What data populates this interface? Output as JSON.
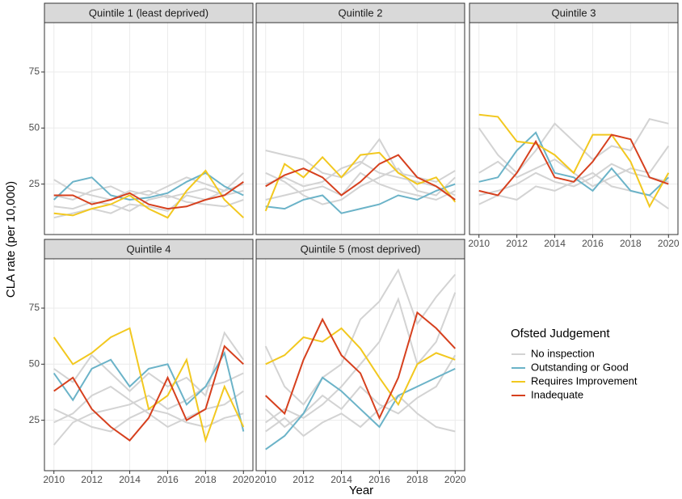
{
  "chart_data": [
    {
      "type": "line",
      "title": "Quintile 1 (least deprived)",
      "x": [
        2010,
        2011,
        2012,
        2013,
        2014,
        2015,
        2016,
        2017,
        2018,
        2019,
        2020
      ],
      "xlim": [
        2009.5,
        2020.5
      ],
      "ylim": [
        2.5,
        97
      ],
      "xticks": [
        2010,
        2012,
        2014,
        2016,
        2018,
        2020
      ],
      "yticks": [
        25,
        50,
        75
      ],
      "grid": true,
      "series": [
        {
          "color": "#d3d3d3",
          "values": [
            27,
            22,
            20,
            18,
            22,
            20,
            24,
            28,
            25,
            22,
            30
          ]
        },
        {
          "color": "#d3d3d3",
          "values": [
            15,
            14,
            17,
            16,
            13,
            18,
            20,
            17,
            16,
            15,
            18
          ]
        },
        {
          "color": "#d3d3d3",
          "values": [
            20,
            18,
            22,
            24,
            20,
            22,
            19,
            21,
            23,
            20,
            22
          ]
        },
        {
          "color": "#d3d3d3",
          "values": [
            10,
            12,
            14,
            12,
            16,
            15,
            13,
            20,
            18,
            22,
            25
          ]
        },
        {
          "color": "#6bb3c8",
          "values": [
            18,
            26,
            28,
            20,
            18,
            19,
            21,
            26,
            30,
            24,
            20
          ]
        },
        {
          "color": "#f2c81f",
          "values": [
            12,
            11,
            14,
            16,
            20,
            14,
            10,
            22,
            31,
            18,
            10
          ]
        },
        {
          "color": "#d6401e",
          "values": [
            20,
            20,
            16,
            18,
            21,
            16,
            14,
            15,
            18,
            20,
            26
          ]
        }
      ]
    },
    {
      "type": "line",
      "title": "Quintile 2",
      "x": [
        2010,
        2011,
        2012,
        2013,
        2014,
        2015,
        2016,
        2017,
        2018,
        2019,
        2020
      ],
      "xlim": [
        2009.5,
        2020.5
      ],
      "ylim": [
        2.5,
        97
      ],
      "xticks": [
        2010,
        2012,
        2014,
        2016,
        2018,
        2020
      ],
      "yticks": [
        25,
        50,
        75
      ],
      "grid": true,
      "series": [
        {
          "color": "#d3d3d3",
          "values": [
            40,
            38,
            36,
            30,
            28,
            34,
            45,
            30,
            28,
            26,
            31
          ]
        },
        {
          "color": "#d3d3d3",
          "values": [
            18,
            20,
            22,
            24,
            20,
            30,
            25,
            22,
            20,
            18,
            22
          ]
        },
        {
          "color": "#d3d3d3",
          "values": [
            25,
            28,
            24,
            26,
            32,
            35,
            30,
            28,
            26,
            24,
            20
          ]
        },
        {
          "color": "#d3d3d3",
          "values": [
            30,
            26,
            20,
            16,
            18,
            24,
            28,
            32,
            22,
            20,
            28
          ]
        },
        {
          "color": "#6bb3c8",
          "values": [
            15,
            14,
            18,
            20,
            12,
            14,
            16,
            20,
            18,
            22,
            25
          ]
        },
        {
          "color": "#f2c81f",
          "values": [
            13,
            34,
            28,
            37,
            28,
            38,
            39,
            30,
            25,
            28,
            17
          ]
        },
        {
          "color": "#d6401e",
          "values": [
            24,
            29,
            32,
            28,
            20,
            26,
            34,
            38,
            28,
            24,
            18
          ]
        }
      ]
    },
    {
      "type": "line",
      "title": "Quintile 3",
      "x": [
        2010,
        2011,
        2012,
        2013,
        2014,
        2015,
        2016,
        2017,
        2018,
        2019,
        2020
      ],
      "xlim": [
        2009.5,
        2020.5
      ],
      "ylim": [
        2.5,
        97
      ],
      "xticks": [
        2010,
        2012,
        2014,
        2016,
        2018,
        2020
      ],
      "yticks": [
        25,
        50,
        75
      ],
      "grid": true,
      "series": [
        {
          "color": "#d3d3d3",
          "values": [
            50,
            38,
            30,
            40,
            52,
            44,
            36,
            42,
            40,
            54,
            52
          ]
        },
        {
          "color": "#d3d3d3",
          "values": [
            20,
            22,
            25,
            30,
            26,
            24,
            28,
            34,
            30,
            28,
            26
          ]
        },
        {
          "color": "#d3d3d3",
          "values": [
            30,
            35,
            28,
            32,
            36,
            30,
            24,
            28,
            32,
            30,
            42
          ]
        },
        {
          "color": "#d3d3d3",
          "values": [
            16,
            20,
            18,
            24,
            22,
            26,
            30,
            24,
            22,
            20,
            14
          ]
        },
        {
          "color": "#6bb3c8",
          "values": [
            26,
            28,
            40,
            48,
            30,
            28,
            22,
            32,
            22,
            20,
            28
          ]
        },
        {
          "color": "#f2c81f",
          "values": [
            56,
            55,
            44,
            43,
            38,
            30,
            47,
            47,
            35,
            15,
            30
          ]
        },
        {
          "color": "#d6401e",
          "values": [
            22,
            20,
            30,
            44,
            28,
            26,
            35,
            47,
            45,
            28,
            25
          ]
        }
      ]
    },
    {
      "type": "line",
      "title": "Quintile 4",
      "x": [
        2010,
        2011,
        2012,
        2013,
        2014,
        2015,
        2016,
        2017,
        2018,
        2019,
        2020
      ],
      "xlim": [
        2009.5,
        2020.5
      ],
      "ylim": [
        2.5,
        97
      ],
      "xticks": [
        2010,
        2012,
        2014,
        2016,
        2018,
        2020
      ],
      "yticks": [
        25,
        50,
        75
      ],
      "grid": true,
      "series": [
        {
          "color": "#d3d3d3",
          "values": [
            48,
            42,
            54,
            46,
            38,
            46,
            40,
            44,
            36,
            64,
            52
          ]
        },
        {
          "color": "#d3d3d3",
          "values": [
            14,
            24,
            28,
            30,
            32,
            36,
            30,
            34,
            40,
            42,
            46
          ]
        },
        {
          "color": "#d3d3d3",
          "values": [
            30,
            26,
            22,
            20,
            26,
            30,
            28,
            24,
            22,
            26,
            28
          ]
        },
        {
          "color": "#d3d3d3",
          "values": [
            24,
            28,
            36,
            40,
            34,
            28,
            22,
            26,
            30,
            32,
            38
          ]
        },
        {
          "color": "#6bb3c8",
          "values": [
            46,
            34,
            48,
            52,
            40,
            48,
            50,
            32,
            40,
            55,
            20
          ]
        },
        {
          "color": "#f2c81f",
          "values": [
            62,
            50,
            55,
            62,
            66,
            30,
            36,
            52,
            16,
            40,
            22
          ]
        },
        {
          "color": "#d6401e",
          "values": [
            38,
            44,
            30,
            22,
            16,
            26,
            44,
            25,
            30,
            58,
            50
          ]
        }
      ]
    },
    {
      "type": "line",
      "title": "Quintile 5 (most deprived)",
      "x": [
        2010,
        2011,
        2012,
        2013,
        2014,
        2015,
        2016,
        2017,
        2018,
        2019,
        2020
      ],
      "xlim": [
        2009.5,
        2020.5
      ],
      "ylim": [
        2.5,
        97
      ],
      "xticks": [
        2010,
        2012,
        2014,
        2016,
        2018,
        2020
      ],
      "yticks": [
        25,
        50,
        75
      ],
      "grid": true,
      "series": [
        {
          "color": "#d3d3d3",
          "values": [
            58,
            40,
            32,
            44,
            50,
            70,
            78,
            92,
            68,
            80,
            90
          ]
        },
        {
          "color": "#d3d3d3",
          "values": [
            24,
            30,
            26,
            32,
            40,
            50,
            60,
            79,
            50,
            60,
            82
          ]
        },
        {
          "color": "#d3d3d3",
          "values": [
            30,
            22,
            28,
            36,
            30,
            40,
            32,
            28,
            35,
            40,
            54
          ]
        },
        {
          "color": "#d3d3d3",
          "values": [
            20,
            26,
            18,
            24,
            28,
            22,
            30,
            36,
            28,
            22,
            20
          ]
        },
        {
          "color": "#6bb3c8",
          "values": [
            12,
            18,
            28,
            44,
            38,
            30,
            22,
            36,
            40,
            44,
            48
          ]
        },
        {
          "color": "#f2c81f",
          "values": [
            50,
            54,
            62,
            60,
            66,
            57,
            44,
            32,
            50,
            55,
            52
          ]
        },
        {
          "color": "#d6401e",
          "values": [
            36,
            28,
            52,
            70,
            54,
            46,
            26,
            44,
            73,
            66,
            57
          ]
        }
      ]
    }
  ],
  "x_label": "Year",
  "y_label": "CLA rate (per 10,000)",
  "legend": {
    "title": "Ofsted Judgement",
    "entries": [
      {
        "name": "No inspection",
        "color": "#d3d3d3"
      },
      {
        "name": "Outstanding or Good",
        "color": "#6bb3c8"
      },
      {
        "name": "Requires Improvement",
        "color": "#f2c81f"
      },
      {
        "name": "Inadequate",
        "color": "#d6401e"
      }
    ]
  }
}
